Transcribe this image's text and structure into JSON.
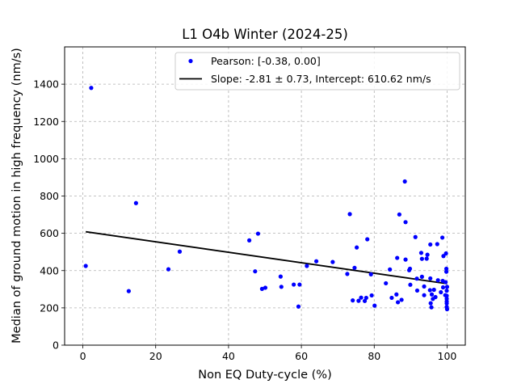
{
  "chart_data": {
    "type": "scatter",
    "title": "L1 O4b Winter (2024-25)",
    "xlabel": "Non EQ Duty-cycle (%)",
    "ylabel": "Median of ground motion in high frequency (nm/s)",
    "xlim": [
      -5,
      105
    ],
    "ylim": [
      0,
      1600
    ],
    "xticks": [
      0,
      20,
      40,
      60,
      80,
      100
    ],
    "yticks": [
      0,
      200,
      400,
      600,
      800,
      1000,
      1200,
      1400
    ],
    "grid": true,
    "legend_position": "top-right",
    "series": [
      {
        "name": "Pearson: [-0.38, 0.00]",
        "kind": "scatter",
        "color": "#0000ff",
        "points": [
          [
            0.8,
            425
          ],
          [
            2.3,
            1380
          ],
          [
            12.6,
            290
          ],
          [
            14.6,
            762
          ],
          [
            23.5,
            407
          ],
          [
            26.6,
            502
          ],
          [
            45.7,
            562
          ],
          [
            47.3,
            396
          ],
          [
            48.1,
            598
          ],
          [
            49.2,
            302
          ],
          [
            50.1,
            308
          ],
          [
            54.3,
            368
          ],
          [
            54.5,
            313
          ],
          [
            57.9,
            325
          ],
          [
            59.2,
            207
          ],
          [
            59.5,
            325
          ],
          [
            61.5,
            425
          ],
          [
            64.1,
            450
          ],
          [
            68.6,
            446
          ],
          [
            72.6,
            382
          ],
          [
            73.3,
            703
          ],
          [
            74.1,
            240
          ],
          [
            74.6,
            415
          ],
          [
            75.2,
            524
          ],
          [
            75.7,
            238
          ],
          [
            76.4,
            255
          ],
          [
            77.4,
            237
          ],
          [
            77.8,
            254
          ],
          [
            78.1,
            568
          ],
          [
            79.1,
            380
          ],
          [
            79.3,
            267
          ],
          [
            80.1,
            212
          ],
          [
            83.2,
            332
          ],
          [
            84.3,
            406
          ],
          [
            84.8,
            254
          ],
          [
            86.1,
            272
          ],
          [
            86.3,
            468
          ],
          [
            86.5,
            230
          ],
          [
            86.9,
            701
          ],
          [
            87.5,
            243
          ],
          [
            88.4,
            878
          ],
          [
            88.6,
            660
          ],
          [
            88.6,
            459
          ],
          [
            89.6,
            402
          ],
          [
            89.8,
            410
          ],
          [
            89.9,
            324
          ],
          [
            91.3,
            580
          ],
          [
            91.7,
            357
          ],
          [
            91.8,
            293
          ],
          [
            92.9,
            495
          ],
          [
            93.1,
            463
          ],
          [
            93.1,
            367
          ],
          [
            93.7,
            315
          ],
          [
            93.7,
            268
          ],
          [
            94.4,
            464
          ],
          [
            94.6,
            485
          ],
          [
            95.3,
            295
          ],
          [
            95.4,
            540
          ],
          [
            95.4,
            358
          ],
          [
            95.5,
            225
          ],
          [
            95.7,
            203
          ],
          [
            95.8,
            272
          ],
          [
            96.1,
            248
          ],
          [
            96.4,
            297
          ],
          [
            96.8,
            258
          ],
          [
            97.3,
            542
          ],
          [
            97.5,
            348
          ],
          [
            98.3,
            284
          ],
          [
            98.7,
            577
          ],
          [
            98.8,
            345
          ],
          [
            98.9,
            310
          ],
          [
            99.0,
            478
          ],
          [
            99.5,
            268
          ],
          [
            99.6,
            338
          ],
          [
            99.7,
            492
          ],
          [
            99.8,
            410
          ],
          [
            99.8,
            394
          ],
          [
            99.9,
            292
          ],
          [
            99.9,
            265
          ],
          [
            99.9,
            249
          ],
          [
            99.9,
            235
          ],
          [
            99.9,
            224
          ],
          [
            99.9,
            205
          ],
          [
            100.0,
            313
          ],
          [
            100.0,
            193
          ]
        ]
      },
      {
        "name": "Slope: -2.81 ± 0.73, Intercept: 610.62 nm/s",
        "kind": "line",
        "color": "#000000",
        "slope": -2.81,
        "intercept": 610.62,
        "x_range": [
          0.8,
          100
        ]
      }
    ]
  }
}
